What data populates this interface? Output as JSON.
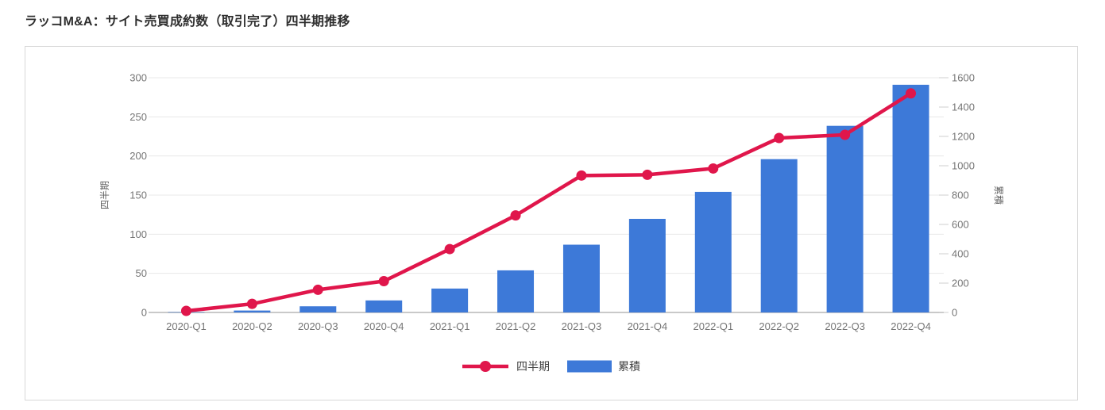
{
  "page_title": "ラッコM&A：サイト売買成約数（取引完了）四半期推移",
  "chart_data": {
    "type": "combo",
    "title": "ラッコM&A：サイト売買成約数（取引完了）四半期推移",
    "categories": [
      "2020-Q1",
      "2020-Q2",
      "2020-Q3",
      "2020-Q4",
      "2021-Q1",
      "2021-Q2",
      "2021-Q3",
      "2021-Q4",
      "2022-Q1",
      "2022-Q2",
      "2022-Q3",
      "2022-Q4"
    ],
    "series": [
      {
        "name": "四半期",
        "type": "line",
        "axis": "left",
        "color": "#e0164b",
        "values": [
          2,
          11,
          29,
          40,
          81,
          124,
          175,
          176,
          184,
          223,
          227,
          280
        ]
      },
      {
        "name": "累積",
        "type": "bar",
        "axis": "right",
        "color": "#3d79d8",
        "values": [
          2,
          13,
          42,
          82,
          163,
          287,
          462,
          638,
          822,
          1045,
          1272,
          1552
        ]
      }
    ],
    "left_axis": {
      "title": "四半期",
      "min": 0,
      "max": 300,
      "tick_step": 50,
      "tick_labels": [
        "0",
        "50",
        "100",
        "150",
        "200",
        "250",
        "300"
      ]
    },
    "right_axis": {
      "title": "累積",
      "min": 0,
      "max": 1600,
      "tick_step": 200,
      "tick_labels": [
        "0",
        "200",
        "400",
        "600",
        "800",
        "1000",
        "1200",
        "1400",
        "1600"
      ]
    },
    "legend": {
      "position": "bottom",
      "items": [
        {
          "label": "四半期",
          "symbol": "line-dot",
          "color": "#e0164b"
        },
        {
          "label": "累積",
          "symbol": "rect",
          "color": "#3d79d8"
        }
      ]
    },
    "grid": true,
    "colors": {
      "gridline": "#e8e8e8",
      "axis_line": "#c9c9c9",
      "tick_text": "#757575",
      "axis_title_text": "#616161",
      "legend_text": "#3f3f3f",
      "background": "#ffffff",
      "card_border": "#d8d8d8"
    }
  }
}
